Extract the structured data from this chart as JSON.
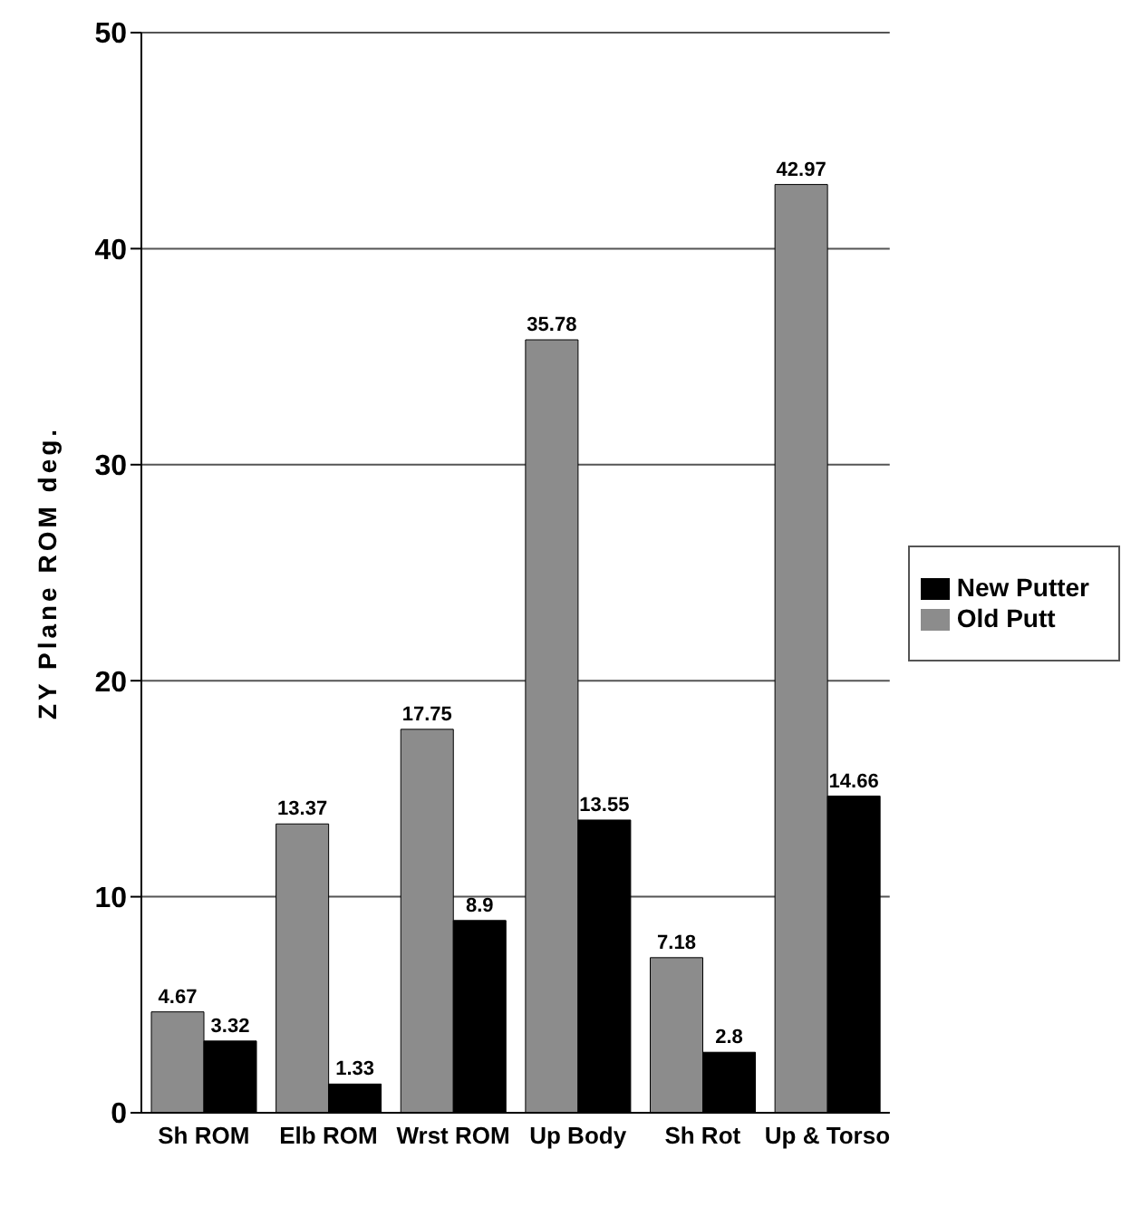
{
  "chart_data": {
    "type": "bar",
    "ylabel": "ZY Plane ROM deg.",
    "categories": [
      "Sh ROM",
      "Elb ROM",
      "Wrst ROM",
      "Up Body",
      "Sh Rot",
      "Up & Torso"
    ],
    "series": [
      {
        "name": "Old Putt",
        "color": "#8c8c8c",
        "values": [
          4.67,
          13.37,
          17.75,
          35.78,
          7.18,
          42.97
        ]
      },
      {
        "name": "New Putter",
        "color": "#000000",
        "values": [
          3.32,
          1.33,
          8.9,
          13.55,
          2.8,
          14.66
        ]
      }
    ],
    "ylim": [
      0,
      50
    ],
    "yticks": [
      0,
      10,
      20,
      30,
      40,
      50
    ],
    "grid": "y",
    "legend": "right",
    "data_labels": true
  }
}
